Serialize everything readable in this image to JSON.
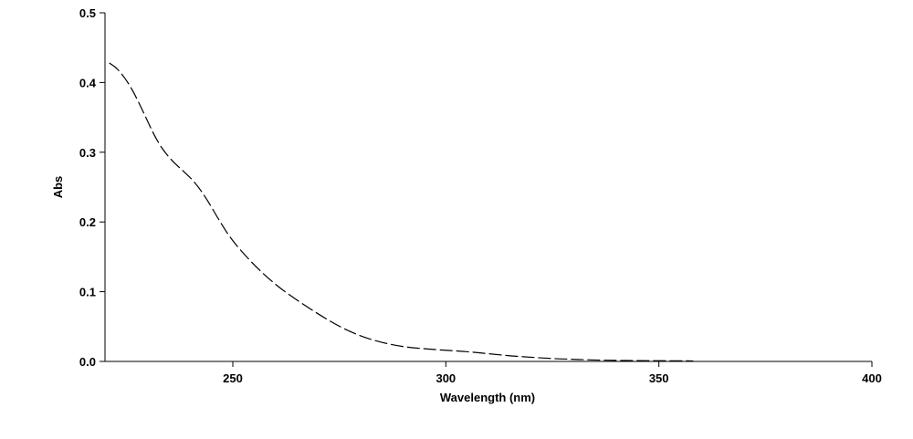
{
  "chart_data": {
    "type": "line",
    "title": "",
    "xlabel": "Wavelength (nm)",
    "ylabel": "Abs",
    "xlim": [
      220,
      400
    ],
    "ylim": [
      0.0,
      0.5
    ],
    "x_ticks": [
      250,
      300,
      350,
      400
    ],
    "x_tick_labels": [
      "250",
      "300",
      "350",
      "400"
    ],
    "y_ticks": [
      0.0,
      0.1,
      0.2,
      0.3,
      0.4,
      0.5
    ],
    "y_tick_labels": [
      "0.0",
      "0.1",
      "0.2",
      "0.3",
      "0.4",
      "0.5"
    ],
    "grid": false,
    "legend": "none",
    "line_style": "dashed",
    "line_color": "#000000",
    "series": [
      {
        "x": [
          221,
          223,
          226,
          229,
          232,
          235,
          238,
          241,
          244,
          247,
          250,
          255,
          260,
          265,
          270,
          275,
          280,
          285,
          290,
          295,
          300,
          305,
          310,
          315,
          320,
          325,
          330,
          335,
          340,
          345,
          350,
          355,
          358
        ],
        "y": [
          0.428,
          0.42,
          0.395,
          0.358,
          0.318,
          0.292,
          0.275,
          0.258,
          0.232,
          0.2,
          0.172,
          0.138,
          0.11,
          0.088,
          0.068,
          0.05,
          0.036,
          0.027,
          0.021,
          0.018,
          0.016,
          0.014,
          0.011,
          0.008,
          0.006,
          0.004,
          0.003,
          0.002,
          0.0015,
          0.001,
          0.001,
          0.0008,
          0.0007
        ]
      }
    ]
  }
}
